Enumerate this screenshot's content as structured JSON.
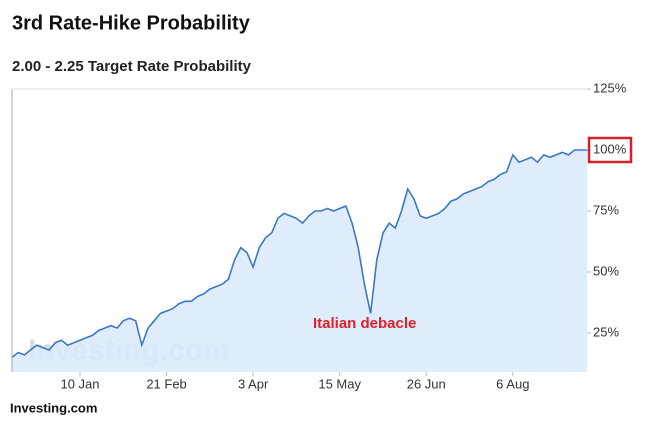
{
  "chart_data": {
    "type": "area",
    "title": "3rd Rate-Hike Probability",
    "subtitle": "2.00 - 2.25 Target Rate Probability",
    "annotation": "Italian debacle",
    "source": "Investing.com",
    "watermark": "Investing.com",
    "categories": [
      null,
      null,
      null,
      null,
      null,
      null,
      null,
      null,
      null,
      null,
      null,
      "10 Jan",
      null,
      null,
      null,
      null,
      null,
      null,
      null,
      null,
      null,
      null,
      null,
      null,
      null,
      "21 Feb",
      null,
      null,
      null,
      null,
      null,
      null,
      null,
      null,
      null,
      null,
      null,
      null,
      null,
      "3 Apr",
      null,
      null,
      null,
      null,
      null,
      null,
      null,
      null,
      null,
      null,
      null,
      null,
      null,
      "15 May",
      null,
      null,
      null,
      null,
      null,
      null,
      null,
      null,
      null,
      null,
      null,
      null,
      null,
      "26 Jun",
      null,
      null,
      null,
      null,
      null,
      null,
      null,
      null,
      null,
      null,
      null,
      null,
      null,
      "6 Aug",
      null,
      null,
      null,
      null,
      null,
      null,
      null,
      null,
      null,
      null,
      null,
      null
    ],
    "series": [
      {
        "name": "2.00 - 2.25",
        "color": "#3d78c2",
        "fill": "#d9e9fc",
        "values": [
          15,
          17,
          16,
          18,
          20,
          19,
          18,
          21,
          22,
          20,
          21,
          22,
          23,
          24,
          26,
          27,
          28,
          27,
          30,
          31,
          30,
          20,
          27,
          30,
          33,
          34,
          35,
          37,
          38,
          38,
          40,
          41,
          43,
          44,
          45,
          47,
          55,
          60,
          58,
          52,
          60,
          64,
          66,
          72,
          74,
          73,
          72,
          70,
          73,
          75,
          75,
          76,
          75,
          76,
          77,
          70,
          60,
          45,
          33,
          55,
          66,
          70,
          68,
          75,
          84,
          80,
          73,
          72,
          73,
          74,
          76,
          79,
          80,
          82,
          83,
          84,
          85,
          87,
          88,
          90,
          91,
          98,
          95,
          96,
          97,
          95,
          98,
          97,
          98,
          99,
          98,
          100,
          100,
          100
        ]
      }
    ],
    "ylim": [
      9,
      125
    ],
    "yticks": [
      {
        "value": 25,
        "label": "25%"
      },
      {
        "value": 50,
        "label": "50%"
      },
      {
        "value": 75,
        "label": "75%"
      },
      {
        "value": 100,
        "label": "100%"
      },
      {
        "value": 125,
        "label": "125%"
      }
    ],
    "highlight_ytick": 3,
    "highlight_color": "#d4202a",
    "annotation_color": "#e0202a"
  }
}
